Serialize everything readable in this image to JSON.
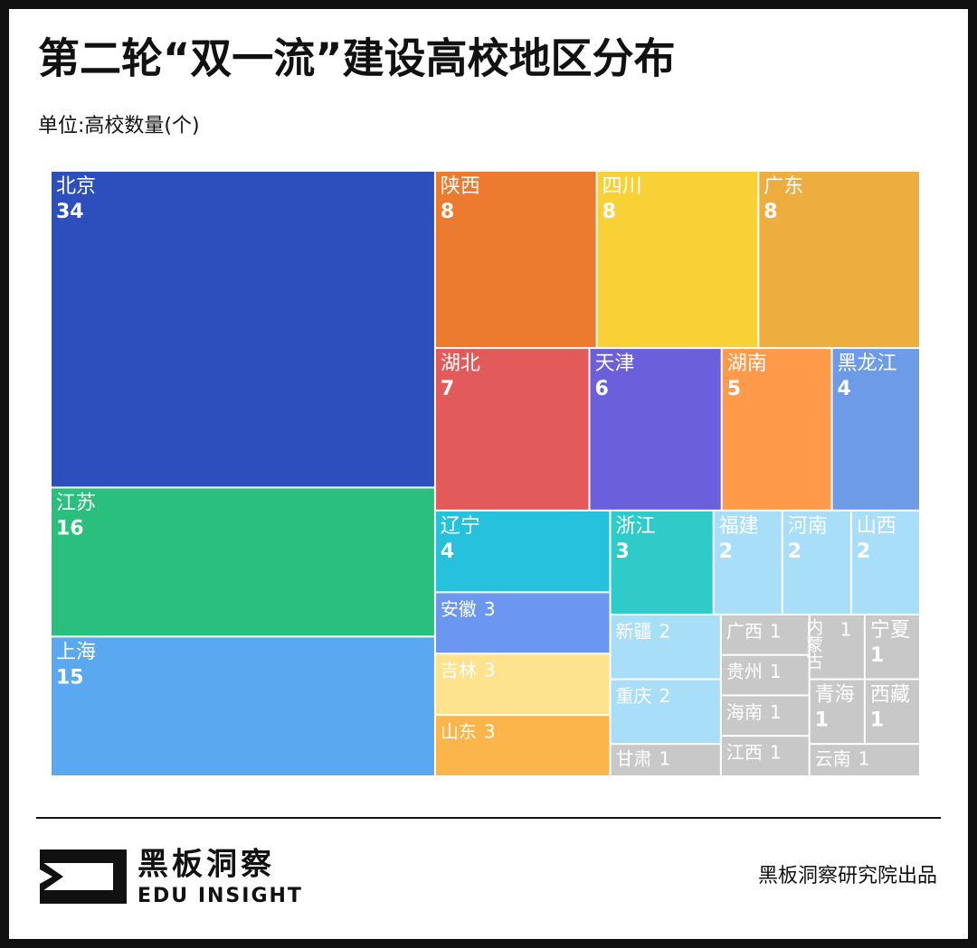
{
  "chart_data": {
    "type": "treemap",
    "title": "第二轮“双一流”建设高校地区分布",
    "subtitle": "单位:高校数量(个)",
    "categories": [
      "北京",
      "江苏",
      "上海",
      "陕西",
      "四川",
      "广东",
      "湖北",
      "天津",
      "湖南",
      "黑龙江",
      "辽宁",
      "安徽",
      "吉林",
      "山东",
      "浙江",
      "福建",
      "河南",
      "山西",
      "新疆",
      "重庆",
      "甘肃",
      "广西",
      "贵州",
      "海南",
      "江西",
      "内蒙古",
      "宁夏",
      "青海",
      "西藏",
      "云南"
    ],
    "values": [
      34,
      16,
      15,
      8,
      8,
      8,
      7,
      6,
      5,
      4,
      4,
      3,
      3,
      3,
      3,
      2,
      2,
      2,
      2,
      2,
      1,
      1,
      1,
      1,
      1,
      1,
      1,
      1,
      1,
      1
    ],
    "colors": [
      "#2c4fbd",
      "#2bbf7e",
      "#5aa9f0",
      "#ec7a2f",
      "#f8d136",
      "#eead3f",
      "#e25a5a",
      "#6b5fdc",
      "#ff9a4b",
      "#6d9be8",
      "#26c2dd",
      "#6b97f0",
      "#fde38e",
      "#fbb54a",
      "#2ecbc8",
      "#a9def8",
      "#a9def8",
      "#a9def8",
      "#a9def8",
      "#a9def8",
      "#c8c8c8",
      "#c8c8c8",
      "#c8c8c8",
      "#c8c8c8",
      "#c8c8c8",
      "#c8c8c8",
      "#c8c8c8",
      "#c8c8c8",
      "#c8c8c8",
      "#c8c8c8"
    ]
  },
  "brand": {
    "name": "黑板洞察",
    "tagline": "EDU INSIGHT"
  },
  "credit": "黑板洞察研究院出品"
}
